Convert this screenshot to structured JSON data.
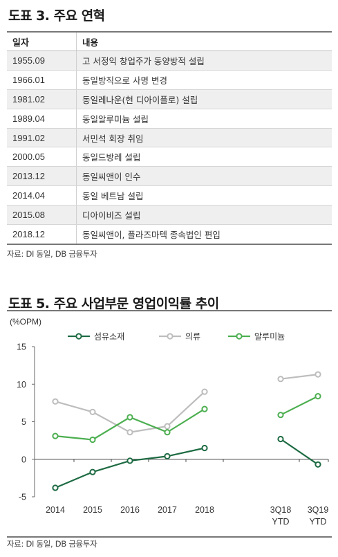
{
  "table_section": {
    "title": "도표 3. 주요 연혁",
    "headers": [
      "일자",
      "내용"
    ],
    "rows": [
      [
        "1955.09",
        "고 서정익 창업주가 동양방적 설립"
      ],
      [
        "1966.01",
        "동일방직으로 사명 변경"
      ],
      [
        "1981.02",
        "동일레나운(현 디아이플로) 설립"
      ],
      [
        "1989.04",
        "동일알루미늄 설립"
      ],
      [
        "1991.02",
        "서민석 회장 취임"
      ],
      [
        "2000.05",
        "동일드방레 설립"
      ],
      [
        "2013.12",
        "동일씨앤이 인수"
      ],
      [
        "2014.04",
        "동일 베트남 설립"
      ],
      [
        "2015.08",
        "디아이비즈 설립"
      ],
      [
        "2018.12",
        "동일씨앤이, 플라즈마텍 종속법인 편입"
      ]
    ],
    "source": "자료: DI 동일, DB 금융투자"
  },
  "chart_section": {
    "title": "도표 5. 주요 사업부문 영업이익률 추이",
    "source": "자료: DI 동일, DB 금융투자"
  },
  "chart_data": {
    "type": "line",
    "title": "도표 5. 주요 사업부문 영업이익률 추이",
    "ylabel": "(%OPM)",
    "xlabel": "",
    "ylim": [
      -5,
      15
    ],
    "yticks": [
      -5,
      0,
      5,
      10,
      15
    ],
    "grid": false,
    "legend": "top",
    "x": [
      "2014",
      "2015",
      "2016",
      "2017",
      "2018",
      "3Q18 YTD",
      "3Q19 YTD"
    ],
    "series": [
      {
        "name": "섬유소재",
        "color": "#1e6b43",
        "segments": [
          [
            0,
            4
          ],
          [
            5,
            6
          ]
        ],
        "values": [
          -3.8,
          -1.7,
          -0.2,
          0.4,
          1.5,
          2.7,
          -0.7
        ]
      },
      {
        "name": "의류",
        "color": "#bdbdbd",
        "segments": [
          [
            0,
            4
          ],
          [
            5,
            6
          ]
        ],
        "values": [
          7.7,
          6.3,
          3.6,
          4.4,
          9.0,
          10.7,
          11.3
        ]
      },
      {
        "name": "알루미늄",
        "color": "#4caf50",
        "segments": [
          [
            0,
            4
          ],
          [
            5,
            6
          ]
        ],
        "values": [
          3.1,
          2.6,
          5.6,
          3.6,
          6.7,
          5.9,
          8.4
        ]
      }
    ]
  }
}
